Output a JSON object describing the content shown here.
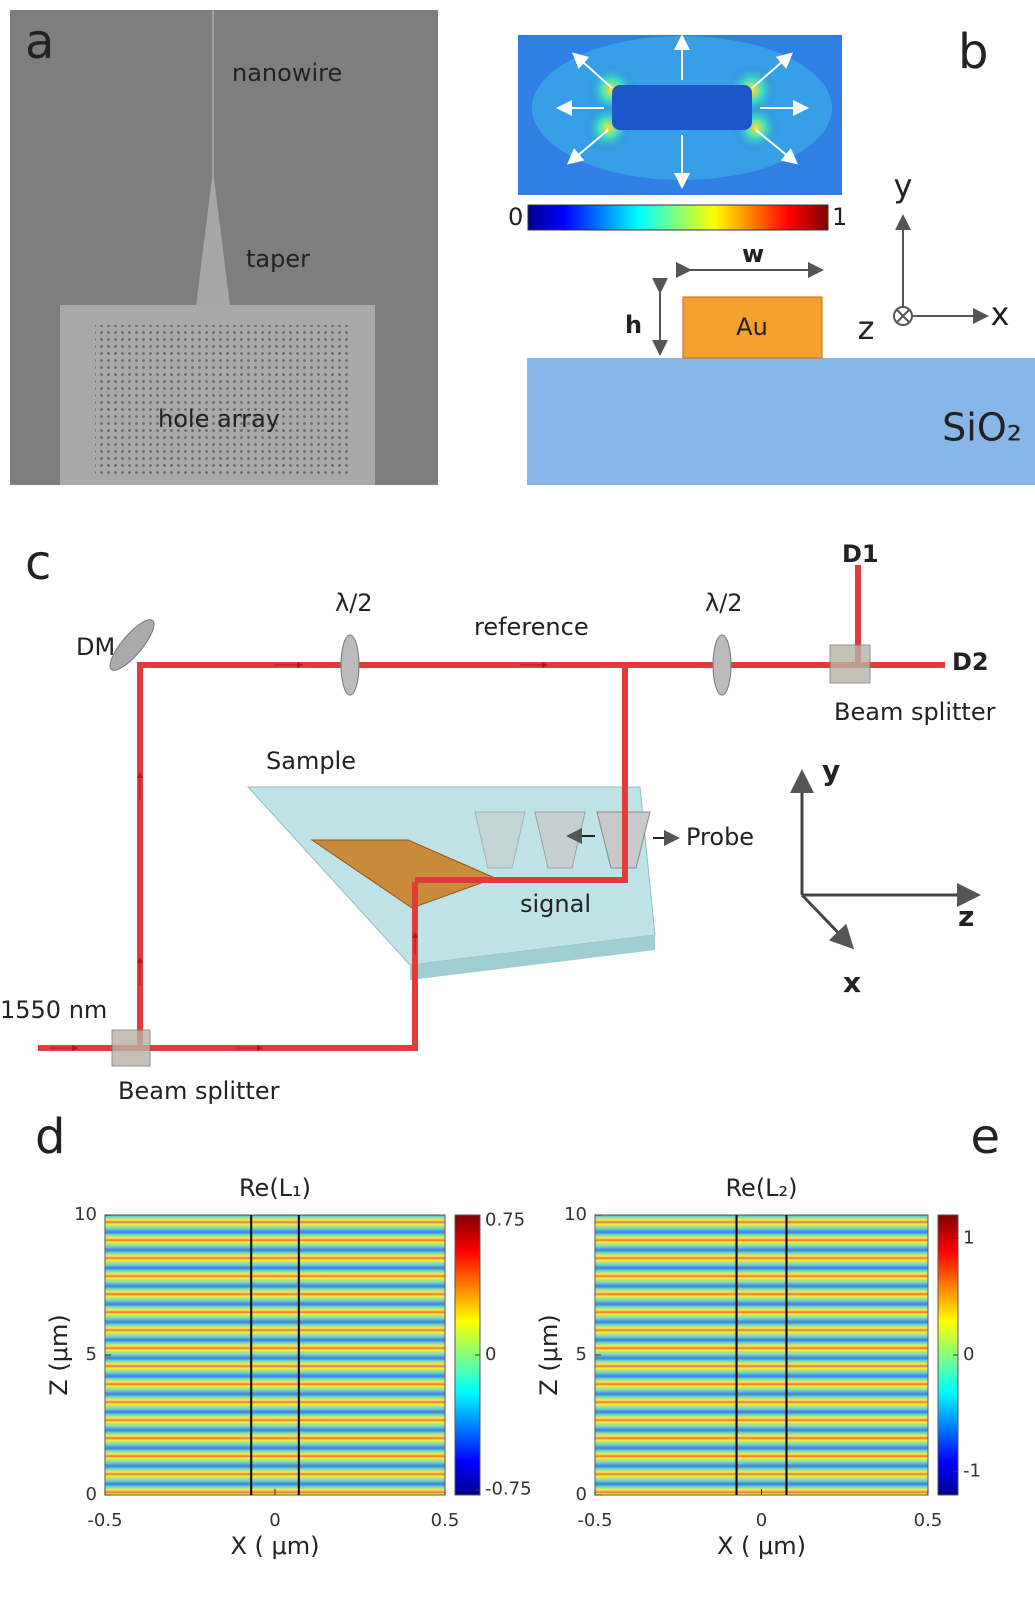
{
  "panel_a": {
    "label": "a",
    "annotations": [
      "nanowire",
      "taper",
      "hole array"
    ]
  },
  "panel_b": {
    "label": "b",
    "colorbar_ticks": [
      0,
      1
    ],
    "width_label": "w",
    "height_label": "h",
    "block": "Au",
    "substrate": "SiO₂",
    "axes": [
      "y",
      "z",
      "x"
    ]
  },
  "panel_c": {
    "label": "c",
    "detectors": [
      "D1",
      "D2"
    ],
    "waveplates": [
      "λ/2",
      "λ/2"
    ],
    "reference": "reference",
    "mirror": "DM",
    "splitters": [
      "Beam splitter",
      "Beam splitter"
    ],
    "sample": "Sample",
    "probe": "Probe",
    "signal": "signal",
    "axes": [
      "y",
      "z",
      "x"
    ],
    "wavelength": "1550 nm"
  },
  "plots": [
    {
      "label": "d",
      "title": "Re(L₁)",
      "xlabel": "X ( μm)",
      "ylabel": "Z (μm)",
      "xlim": [
        -0.5,
        0.5
      ],
      "xticks": [
        -0.5,
        0,
        0.5
      ],
      "ylim": [
        0,
        10
      ],
      "yticks": [
        0,
        5,
        10
      ],
      "clim": [
        -0.78,
        0.78
      ],
      "cticks": [
        -0.75,
        0,
        0.75
      ],
      "boundaries": [
        -0.07,
        0.07
      ]
    },
    {
      "label": "e",
      "title": "Re(L₂)",
      "xlabel": "X ( μm)",
      "ylabel": "Z (μm)",
      "xlim": [
        -0.5,
        0.5
      ],
      "xticks": [
        -0.5,
        0,
        0.5
      ],
      "ylim": [
        0,
        10
      ],
      "yticks": [
        0,
        5,
        10
      ],
      "clim": [
        -1.2,
        1.2
      ],
      "cticks": [
        -1,
        0,
        1
      ],
      "boundaries": [
        -0.075,
        0.075
      ]
    }
  ]
}
